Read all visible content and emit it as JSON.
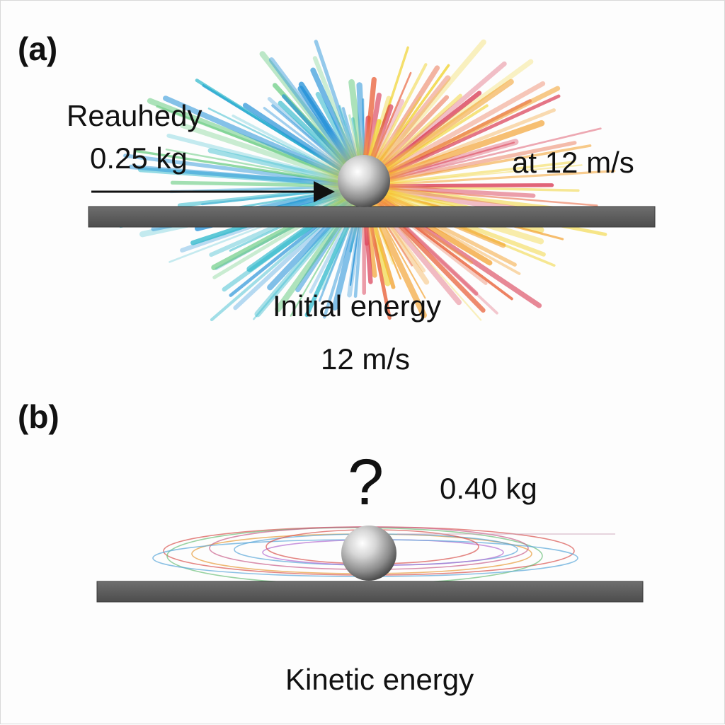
{
  "panel_a": {
    "label": "(a)",
    "object_name": "Reauhedy",
    "mass": "0.25 kg",
    "speed_right": "at 12 m/s",
    "energy_label": "Initial energy",
    "speed_below": "12 m/s"
  },
  "panel_b": {
    "label": "(b)",
    "question": "?",
    "mass": "0.40 kg",
    "energy_label": "Kinetic energy"
  },
  "colors": {
    "surface": "#5f5f5f",
    "burst_cool": [
      "#1f8fd8",
      "#23b5c9",
      "#4cc36a"
    ],
    "burst_warm": [
      "#f0d020",
      "#f39a1e",
      "#e8552a",
      "#d8304a"
    ],
    "orbit": [
      "#d9534f",
      "#e79b3a",
      "#5aa7d8",
      "#6cbf7a",
      "#b46bd0",
      "#c95f8a"
    ]
  }
}
